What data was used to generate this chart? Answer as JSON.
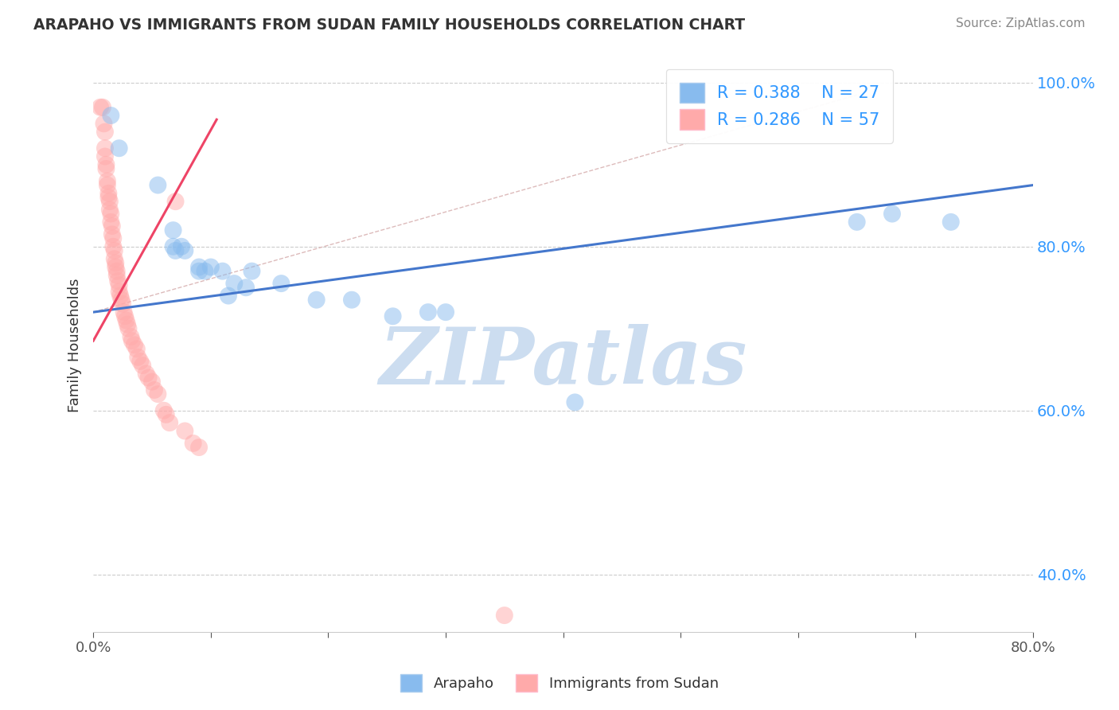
{
  "title": "ARAPAHO VS IMMIGRANTS FROM SUDAN FAMILY HOUSEHOLDS CORRELATION CHART",
  "source": "Source: ZipAtlas.com",
  "ylabel": "Family Households",
  "xmin": 0.0,
  "xmax": 0.8,
  "ymin": 0.33,
  "ymax": 1.03,
  "yticks": [
    0.4,
    0.6,
    0.8,
    1.0
  ],
  "ytick_labels": [
    "40.0%",
    "60.0%",
    "80.0%",
    "100.0%"
  ],
  "xticks": [
    0.0,
    0.1,
    0.2,
    0.3,
    0.4,
    0.5,
    0.6,
    0.7,
    0.8
  ],
  "xtick_labels": [
    "0.0%",
    "",
    "",
    "",
    "",
    "",
    "",
    "",
    "80.0%"
  ],
  "legend_labels": [
    "R = 0.388    N = 27",
    "R = 0.286    N = 57"
  ],
  "legend_series": [
    "Arapaho",
    "Immigrants from Sudan"
  ],
  "blue_color": "#88BBEE",
  "pink_color": "#FFAAAA",
  "blue_scatter": [
    [
      0.015,
      0.96
    ],
    [
      0.022,
      0.92
    ],
    [
      0.055,
      0.875
    ],
    [
      0.068,
      0.82
    ],
    [
      0.068,
      0.8
    ],
    [
      0.07,
      0.795
    ],
    [
      0.075,
      0.8
    ],
    [
      0.078,
      0.795
    ],
    [
      0.09,
      0.775
    ],
    [
      0.09,
      0.77
    ],
    [
      0.095,
      0.77
    ],
    [
      0.1,
      0.775
    ],
    [
      0.11,
      0.77
    ],
    [
      0.115,
      0.74
    ],
    [
      0.12,
      0.755
    ],
    [
      0.13,
      0.75
    ],
    [
      0.135,
      0.77
    ],
    [
      0.16,
      0.755
    ],
    [
      0.19,
      0.735
    ],
    [
      0.22,
      0.735
    ],
    [
      0.255,
      0.715
    ],
    [
      0.285,
      0.72
    ],
    [
      0.3,
      0.72
    ],
    [
      0.41,
      0.61
    ],
    [
      0.65,
      0.83
    ],
    [
      0.68,
      0.84
    ],
    [
      0.73,
      0.83
    ]
  ],
  "pink_scatter": [
    [
      0.006,
      0.97
    ],
    [
      0.008,
      0.97
    ],
    [
      0.009,
      0.95
    ],
    [
      0.01,
      0.94
    ],
    [
      0.01,
      0.92
    ],
    [
      0.01,
      0.91
    ],
    [
      0.011,
      0.9
    ],
    [
      0.011,
      0.895
    ],
    [
      0.012,
      0.88
    ],
    [
      0.012,
      0.875
    ],
    [
      0.013,
      0.865
    ],
    [
      0.013,
      0.86
    ],
    [
      0.014,
      0.855
    ],
    [
      0.014,
      0.845
    ],
    [
      0.015,
      0.84
    ],
    [
      0.015,
      0.83
    ],
    [
      0.016,
      0.825
    ],
    [
      0.016,
      0.815
    ],
    [
      0.017,
      0.81
    ],
    [
      0.017,
      0.8
    ],
    [
      0.018,
      0.795
    ],
    [
      0.018,
      0.785
    ],
    [
      0.019,
      0.78
    ],
    [
      0.019,
      0.775
    ],
    [
      0.02,
      0.77
    ],
    [
      0.02,
      0.765
    ],
    [
      0.021,
      0.758
    ],
    [
      0.022,
      0.753
    ],
    [
      0.022,
      0.745
    ],
    [
      0.023,
      0.74
    ],
    [
      0.024,
      0.735
    ],
    [
      0.025,
      0.73
    ],
    [
      0.026,
      0.72
    ],
    [
      0.027,
      0.715
    ],
    [
      0.028,
      0.71
    ],
    [
      0.029,
      0.705
    ],
    [
      0.03,
      0.7
    ],
    [
      0.032,
      0.69
    ],
    [
      0.033,
      0.685
    ],
    [
      0.035,
      0.68
    ],
    [
      0.037,
      0.675
    ],
    [
      0.038,
      0.665
    ],
    [
      0.04,
      0.66
    ],
    [
      0.042,
      0.655
    ],
    [
      0.045,
      0.645
    ],
    [
      0.047,
      0.64
    ],
    [
      0.05,
      0.635
    ],
    [
      0.052,
      0.625
    ],
    [
      0.055,
      0.62
    ],
    [
      0.06,
      0.6
    ],
    [
      0.062,
      0.595
    ],
    [
      0.065,
      0.585
    ],
    [
      0.07,
      0.855
    ],
    [
      0.078,
      0.575
    ],
    [
      0.085,
      0.56
    ],
    [
      0.09,
      0.555
    ],
    [
      0.35,
      0.35
    ]
  ],
  "blue_line_x": [
    0.0,
    0.8
  ],
  "blue_line_y": [
    0.72,
    0.875
  ],
  "pink_line_x": [
    0.0,
    0.105
  ],
  "pink_line_y": [
    0.685,
    0.955
  ],
  "ref_line_x": [
    0.0,
    0.65
  ],
  "ref_line_y": [
    0.72,
    0.985
  ],
  "watermark": "ZIPatlas",
  "watermark_color": "#CCDDF0",
  "background_color": "#FFFFFF"
}
